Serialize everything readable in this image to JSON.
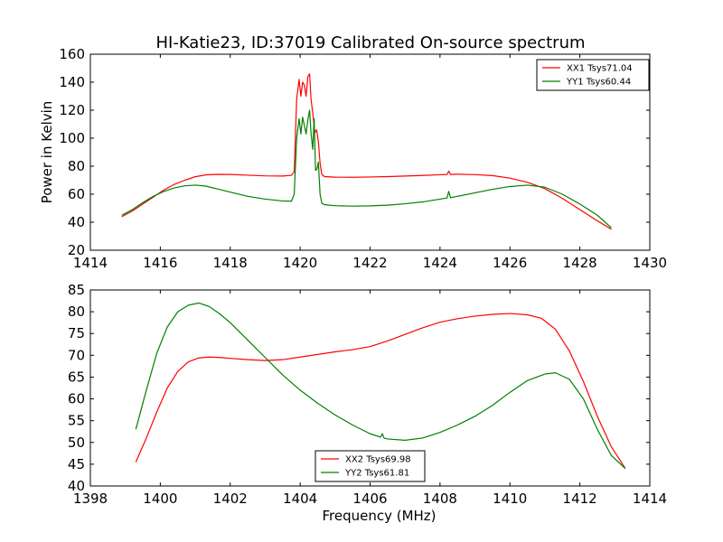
{
  "title": "HI-Katie23, ID:37019 Calibrated On-source spectrum",
  "chart_data": [
    {
      "type": "line",
      "ylabel": "Power in Kelvin",
      "xlabel": "",
      "xlim": [
        1414,
        1430
      ],
      "ylim": [
        20,
        160
      ],
      "xticks": [
        "1414",
        "1416",
        "1418",
        "1420",
        "1422",
        "1424",
        "1426",
        "1428",
        "1430"
      ],
      "yticks": [
        "20",
        "40",
        "60",
        "80",
        "100",
        "120",
        "140",
        "160"
      ],
      "legend_position": "top-right",
      "grid": false,
      "series": [
        {
          "name": "XX1 Tsys71.04",
          "color": "#ff0000",
          "x": [
            1414.9,
            1415.2,
            1415.5,
            1415.8,
            1416.1,
            1416.4,
            1416.7,
            1417.0,
            1417.3,
            1417.6,
            1418.0,
            1418.5,
            1419.0,
            1419.5,
            1419.75,
            1419.83,
            1419.9,
            1419.97,
            1420.02,
            1420.07,
            1420.12,
            1420.17,
            1420.22,
            1420.27,
            1420.31,
            1420.36,
            1420.42,
            1420.47,
            1420.52,
            1420.57,
            1420.62,
            1420.7,
            1421.0,
            1421.5,
            1422.0,
            1422.5,
            1423.0,
            1423.5,
            1424.0,
            1424.2,
            1424.25,
            1424.3,
            1424.5,
            1425.0,
            1425.5,
            1426.0,
            1426.5,
            1427.0,
            1427.5,
            1428.0,
            1428.5,
            1428.9
          ],
          "y": [
            44,
            48,
            53,
            58,
            63,
            67,
            70,
            72.5,
            73.8,
            74.2,
            74.1,
            73.6,
            73.1,
            73,
            73.5,
            76,
            128,
            142,
            130,
            140,
            138,
            130,
            144,
            146,
            128,
            118,
            104,
            106,
            98,
            82,
            74,
            72.6,
            72.2,
            72.1,
            72.3,
            72.6,
            73,
            73.4,
            73.9,
            74.1,
            76.5,
            74.1,
            74.3,
            74,
            73.3,
            71.5,
            68.5,
            64,
            57,
            49,
            41,
            35
          ]
        },
        {
          "name": "YY1 Tsys60.44",
          "color": "#008000",
          "x": [
            1414.9,
            1415.2,
            1415.5,
            1415.8,
            1416.1,
            1416.4,
            1416.7,
            1417.0,
            1417.3,
            1417.6,
            1418.0,
            1418.5,
            1419.0,
            1419.5,
            1419.75,
            1419.83,
            1419.9,
            1419.97,
            1420.02,
            1420.07,
            1420.12,
            1420.17,
            1420.22,
            1420.27,
            1420.31,
            1420.36,
            1420.4,
            1420.44,
            1420.48,
            1420.52,
            1420.57,
            1420.62,
            1420.7,
            1421.0,
            1421.5,
            1422.0,
            1422.5,
            1423.0,
            1423.5,
            1424.0,
            1424.2,
            1424.25,
            1424.3,
            1424.5,
            1425.0,
            1425.5,
            1426.0,
            1426.5,
            1427.0,
            1427.5,
            1428.0,
            1428.5,
            1428.9
          ],
          "y": [
            45,
            49,
            54,
            58.5,
            62,
            64.5,
            66,
            66.5,
            65.8,
            64,
            61.5,
            58.5,
            56.5,
            55.2,
            55,
            60,
            100,
            114,
            103,
            115,
            109,
            103,
            113,
            120,
            104,
            92,
            114,
            77,
            78,
            83,
            60,
            53.5,
            52.5,
            51.8,
            51.5,
            51.7,
            52.2,
            53.2,
            54.5,
            56.5,
            57.3,
            62,
            57.5,
            58.5,
            61,
            63.5,
            65.5,
            66.5,
            65,
            60,
            53,
            45,
            36
          ]
        }
      ]
    },
    {
      "type": "line",
      "ylabel": "",
      "xlabel": "Frequency (MHz)",
      "xlim": [
        1398,
        1414
      ],
      "ylim": [
        40,
        85
      ],
      "xticks": [
        "1398",
        "1400",
        "1402",
        "1404",
        "1406",
        "1408",
        "1410",
        "1412",
        "1414"
      ],
      "yticks": [
        "40",
        "45",
        "50",
        "55",
        "60",
        "65",
        "70",
        "75",
        "80",
        "85"
      ],
      "legend_position": "lower-center",
      "grid": false,
      "series": [
        {
          "name": "XX2 Tsys69.98",
          "color": "#ff0000",
          "x": [
            1399.3,
            1399.6,
            1399.9,
            1400.2,
            1400.5,
            1400.8,
            1401.1,
            1401.4,
            1401.7,
            1402.0,
            1402.5,
            1403.0,
            1403.5,
            1404.0,
            1404.5,
            1405.0,
            1405.5,
            1406.0,
            1406.5,
            1407.0,
            1407.5,
            1408.0,
            1408.5,
            1409.0,
            1409.5,
            1410.0,
            1410.5,
            1410.9,
            1411.3,
            1411.7,
            1412.1,
            1412.5,
            1412.9,
            1413.3
          ],
          "y": [
            45.5,
            51,
            57,
            62.5,
            66.3,
            68.5,
            69.4,
            69.6,
            69.5,
            69.3,
            69,
            68.8,
            69,
            69.6,
            70.2,
            70.8,
            71.3,
            72,
            73.3,
            74.8,
            76.3,
            77.6,
            78.4,
            79,
            79.4,
            79.6,
            79.3,
            78.5,
            76,
            71,
            64,
            56,
            49,
            44
          ]
        },
        {
          "name": "YY2 Tsys61.81",
          "color": "#008000",
          "x": [
            1399.3,
            1399.6,
            1399.9,
            1400.2,
            1400.5,
            1400.8,
            1401.1,
            1401.4,
            1401.7,
            1402.0,
            1402.5,
            1403.0,
            1403.5,
            1404.0,
            1404.5,
            1405.0,
            1405.5,
            1406.0,
            1406.3,
            1406.35,
            1406.4,
            1406.5,
            1407.0,
            1407.5,
            1408.0,
            1408.5,
            1409.0,
            1409.5,
            1410.0,
            1410.5,
            1411.0,
            1411.3,
            1411.7,
            1412.1,
            1412.5,
            1412.9,
            1413.3
          ],
          "y": [
            53,
            62,
            70.5,
            76.5,
            80,
            81.5,
            82,
            81.2,
            79.5,
            77.5,
            73.5,
            69.5,
            65.5,
            62,
            59,
            56.3,
            54,
            52,
            51.2,
            52,
            51,
            50.8,
            50.5,
            51,
            52.3,
            54,
            56,
            58.5,
            61.5,
            64.2,
            65.7,
            66,
            64.5,
            60,
            53,
            47,
            44
          ]
        }
      ]
    }
  ]
}
